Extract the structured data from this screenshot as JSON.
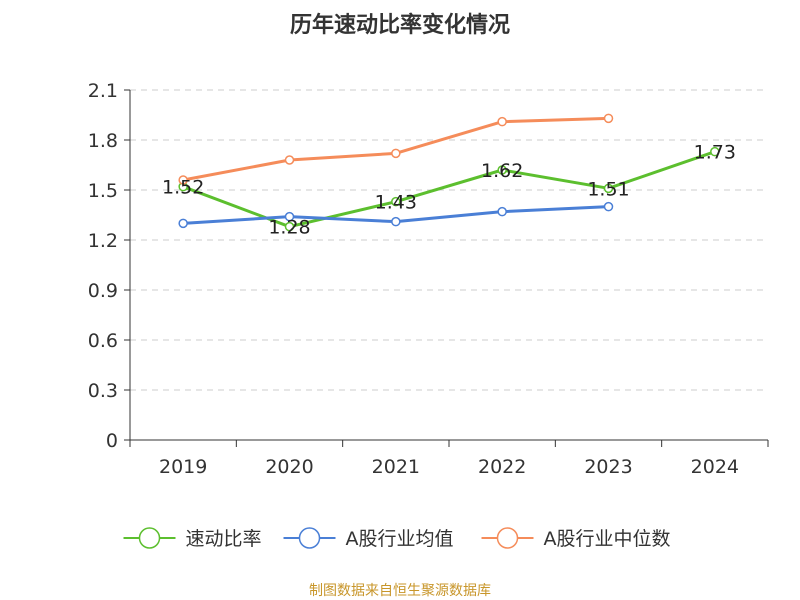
{
  "chart_data": {
    "type": "line",
    "title": "历年速动比率变化情况",
    "categories": [
      "2019",
      "2020",
      "2021",
      "2022",
      "2023",
      "2024"
    ],
    "y_ticks": [
      "0",
      "0.3",
      "0.6",
      "0.9",
      "1.2",
      "1.5",
      "1.8",
      "2.1"
    ],
    "ylim": [
      0,
      2.1
    ],
    "grid": true,
    "legend_position": "bottom",
    "series": [
      {
        "name": "速动比率",
        "color": "#5cbf2e",
        "values": [
          1.52,
          1.28,
          1.43,
          1.62,
          1.51,
          1.73
        ],
        "show_labels": true
      },
      {
        "name": "A股行业均值",
        "color": "#4a7fd6",
        "values": [
          1.3,
          1.34,
          1.31,
          1.37,
          1.4,
          null
        ],
        "show_labels": false
      },
      {
        "name": "A股行业中位数",
        "color": "#f58c5a",
        "values": [
          1.56,
          1.68,
          1.72,
          1.91,
          1.93,
          null
        ],
        "show_labels": false
      }
    ],
    "data_labels": [
      "1.52",
      "1.28",
      "1.43",
      "1.62",
      "1.51",
      "1.73"
    ]
  },
  "footer": {
    "source": "制图数据来自恒生聚源数据库"
  }
}
